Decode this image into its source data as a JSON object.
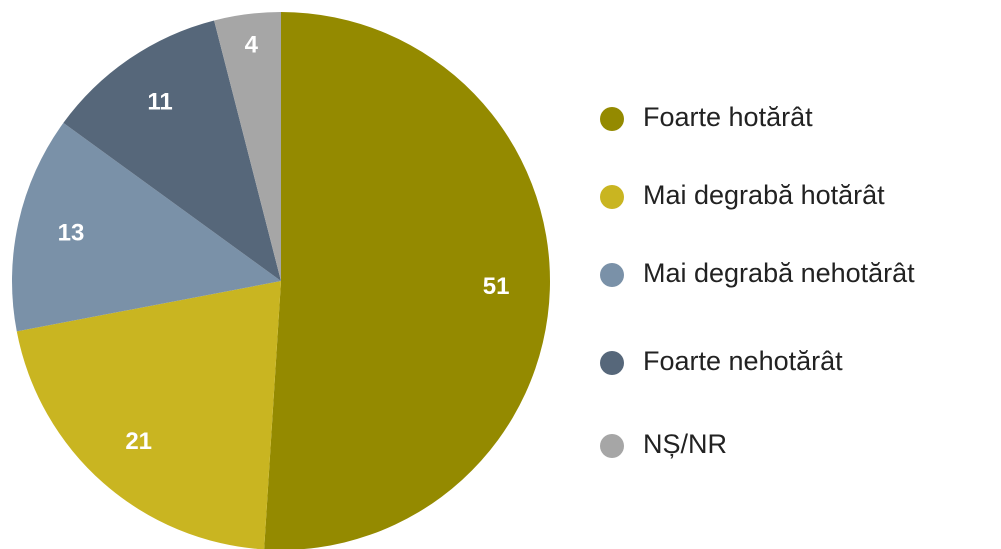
{
  "chart_data": {
    "type": "pie",
    "categories": [
      "Foarte hotărât",
      "Mai degrabă hotărât",
      "Mai degrabă nehotărât",
      "Foarte nehotărât",
      "NȘ/NR"
    ],
    "values": [
      51,
      21,
      13,
      11,
      4
    ],
    "colors": [
      "#948a00",
      "#c9b521",
      "#7a91a8",
      "#56677a",
      "#a6a6a6"
    ]
  }
}
